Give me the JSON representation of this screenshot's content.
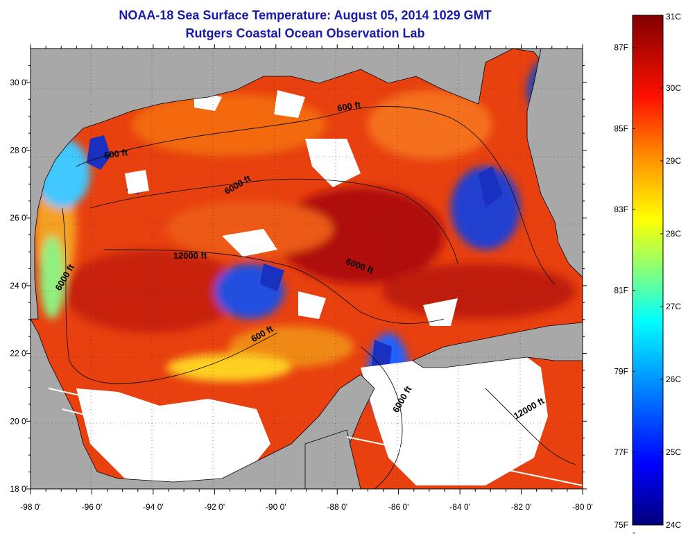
{
  "header": {
    "title": "NOAA-18 Sea Surface Temperature:  August 05, 2014 1029 GMT",
    "subtitle": "Rutgers Coastal Ocean Observation Lab"
  },
  "map": {
    "lon_range": [
      -98,
      -80
    ],
    "lat_range": [
      18,
      31
    ],
    "lon_labels": [
      "-98 0'",
      "-96 0'",
      "-94 0'",
      "-92 0'",
      "-90 0'",
      "-88 0'",
      "-86 0'",
      "-84 0'",
      "-82 0'",
      "-80 0'"
    ],
    "lat_labels": [
      "18 0'",
      "20 0'",
      "22 0'",
      "24 0'",
      "26 0'",
      "28 0'",
      "30 0'"
    ],
    "contour_labels": [
      {
        "text": "600 ft",
        "lon": -95.2,
        "lat": 27.8
      },
      {
        "text": "600 ft",
        "lon": -87.6,
        "lat": 29.2
      },
      {
        "text": "6000 ft",
        "lon": -91.2,
        "lat": 26.9
      },
      {
        "text": "12000 ft",
        "lon": -92.8,
        "lat": 24.8
      },
      {
        "text": "6000 ft",
        "lon": -87.3,
        "lat": 24.5
      },
      {
        "text": "6000 ft",
        "lon": -96.8,
        "lat": 24.2
      },
      {
        "text": "600 ft",
        "lon": -90.4,
        "lat": 22.5
      },
      {
        "text": "6000 ft",
        "lon": -85.8,
        "lat": 20.6
      },
      {
        "text": "12000 ft",
        "lon": -81.7,
        "lat": 20.3
      }
    ],
    "land_color": "#aaaaaa",
    "cloud_color": "#ffffff"
  },
  "colorbar": {
    "celsius_labels": [
      "31C",
      "30C",
      "29C",
      "28C",
      "27C",
      "26C",
      "25C",
      "24C"
    ],
    "fahrenheit_labels": [
      "87F",
      "85F",
      "83F",
      "81F",
      "79F",
      "77F",
      "75F"
    ],
    "celsius_range": [
      24,
      31
    ],
    "colors": [
      "#000080",
      "#0000ff",
      "#0080ff",
      "#00ffff",
      "#80ff80",
      "#ffff00",
      "#ff8000",
      "#ff0000",
      "#800000"
    ]
  }
}
